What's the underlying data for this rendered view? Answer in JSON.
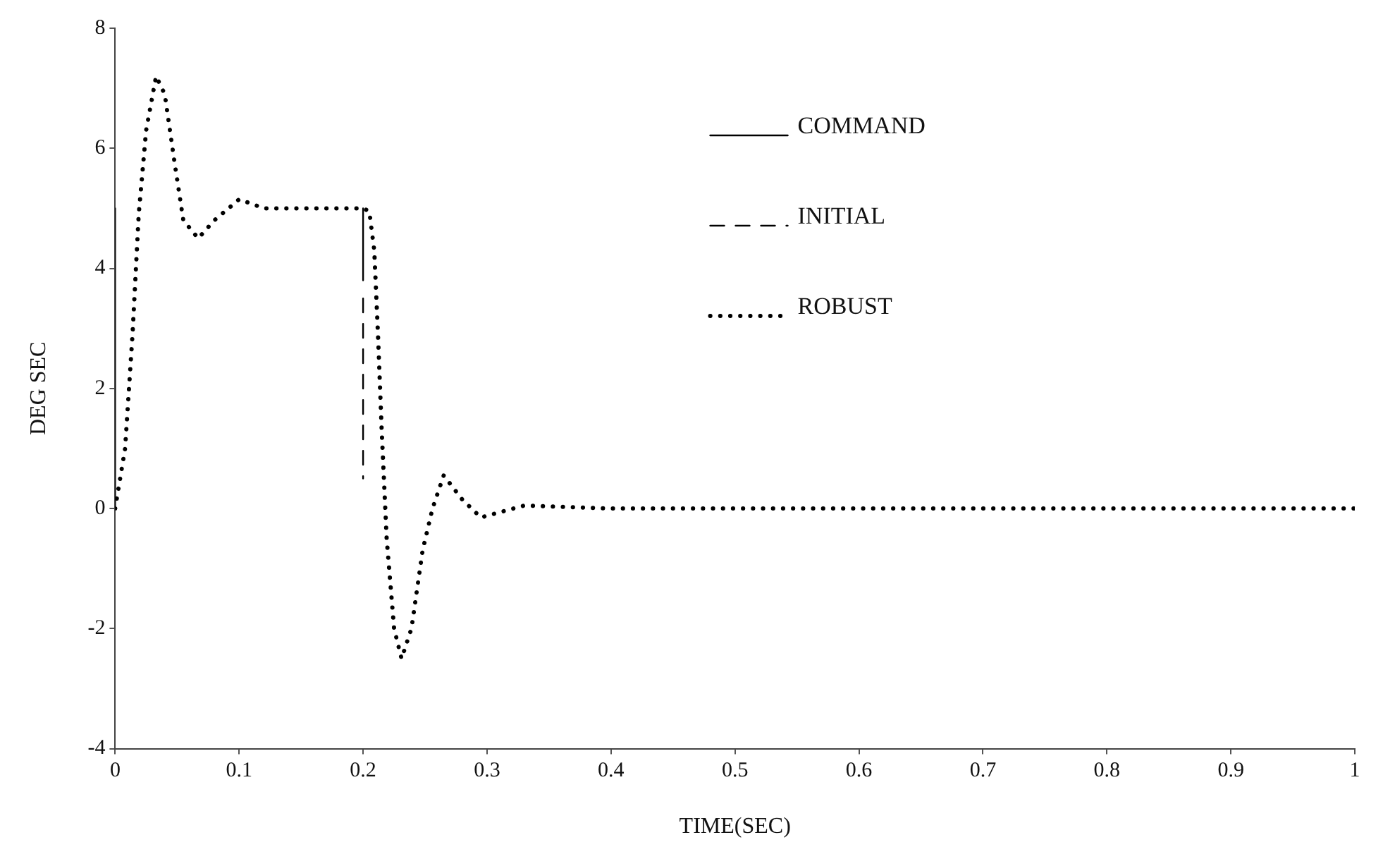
{
  "chart_data": {
    "type": "line",
    "xlabel": "TIME(SEC)",
    "ylabel": "DEG SEC",
    "xlim": [
      0,
      1
    ],
    "xticks": [
      0,
      0.1,
      0.2,
      0.3,
      0.4,
      0.5,
      0.6,
      0.7,
      0.8,
      0.9,
      1
    ],
    "ylim": [
      -4,
      8
    ],
    "yticks": [
      -4,
      -2,
      0,
      2,
      4,
      6,
      8
    ],
    "grid": false,
    "legend": "top",
    "marker": "none",
    "series": [
      {
        "name": "COMMAND",
        "color": "#000000",
        "line_style": "solid",
        "x": [
          0,
          0,
          0.1,
          0.2,
          0.2
        ],
        "values": [
          0,
          5,
          null,
          5,
          3.8
        ]
      },
      {
        "name": "INITIAL",
        "color": "#000000",
        "line_style": "dashed",
        "x": [
          0.2,
          0.2
        ],
        "values": [
          3.5,
          0.5
        ]
      },
      {
        "name": "ROBUST",
        "color": "#000000",
        "line_style": "dotted",
        "x": [
          0,
          0.008,
          0.014,
          0.019,
          0.025,
          0.033,
          0.04,
          0.048,
          0.055,
          0.067,
          0.08,
          0.1,
          0.12,
          0.15,
          0.2,
          0.205,
          0.209,
          0.212,
          0.215,
          0.219,
          0.225,
          0.231,
          0.239,
          0.248,
          0.256,
          0.265,
          0.28,
          0.295,
          0.33,
          0.4,
          1
        ],
        "values": [
          0,
          1.0,
          2.9,
          4.9,
          6.3,
          7.2,
          6.9,
          5.75,
          4.8,
          4.5,
          4.8,
          5.15,
          5.0,
          5.0,
          5.0,
          4.95,
          4.3,
          2.9,
          1.3,
          -0.5,
          -2,
          -2.5,
          -2,
          -0.7,
          0,
          0.55,
          0.15,
          -0.15,
          0.05,
          0,
          0
        ]
      }
    ]
  }
}
